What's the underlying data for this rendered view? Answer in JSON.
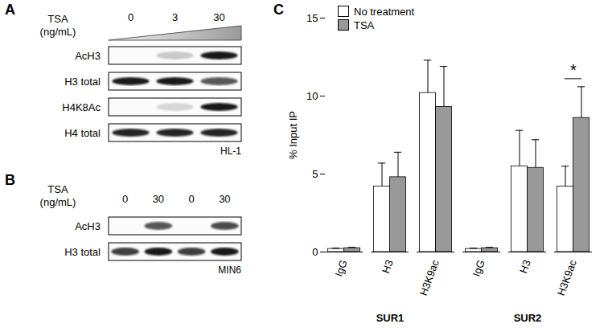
{
  "blots": [
    {
      "panel": "A",
      "treatment": "TSA",
      "unit": "(ng/mL)",
      "lanes": [
        0,
        3,
        30
      ],
      "gradient": true,
      "rows": [
        {
          "label": "AcH3",
          "bands": [
            0,
            0.2,
            0.95
          ]
        },
        {
          "label": "H3 total",
          "bands": [
            0.95,
            0.95,
            0.7
          ]
        },
        {
          "label": "H4K8Ac",
          "bands": [
            0,
            0.15,
            0.95
          ]
        },
        {
          "label": "H4 total",
          "bands": [
            0.9,
            0.9,
            0.9
          ]
        }
      ],
      "cell_line": "HL-1"
    },
    {
      "panel": "B",
      "treatment": "TSA",
      "unit": "(ng/mL)",
      "lanes": [
        0,
        30,
        0,
        30
      ],
      "gradient": false,
      "rows": [
        {
          "label": "AcH3",
          "bands": [
            0,
            0.7,
            0,
            0.75
          ]
        },
        {
          "label": "H3 total",
          "bands": [
            0.8,
            0.95,
            0.8,
            0.95
          ]
        }
      ],
      "cell_line": "MIN6"
    }
  ],
  "chart_data": {
    "panel": "C",
    "type": "bar",
    "y_label": "% Input IP",
    "categories": [
      "IgG",
      "H3",
      "H3K9ac",
      "IgG",
      "H3",
      "H3K9ac"
    ],
    "groups": [
      {
        "label": "SUR1",
        "size": 3
      },
      {
        "label": "SUR2",
        "size": 3
      }
    ],
    "series": [
      {
        "name": "No treatment",
        "color": "#ffffff",
        "values": [
          0.2,
          4.2,
          10.2,
          0.2,
          5.5,
          4.2
        ],
        "errors": [
          0.05,
          1.5,
          2.1,
          0.05,
          2.3,
          1.3
        ]
      },
      {
        "name": "TSA",
        "color": "#999999",
        "values": [
          0.25,
          4.8,
          9.3,
          0.25,
          5.4,
          8.6
        ],
        "errors": [
          0.05,
          1.6,
          2.6,
          0.05,
          1.8,
          2.0
        ]
      }
    ],
    "ylim": [
      0,
      15
    ],
    "yticks": [
      0,
      5,
      10,
      15
    ],
    "legend": "upper left",
    "annotations": [
      {
        "text": "*",
        "category": 5
      }
    ]
  }
}
